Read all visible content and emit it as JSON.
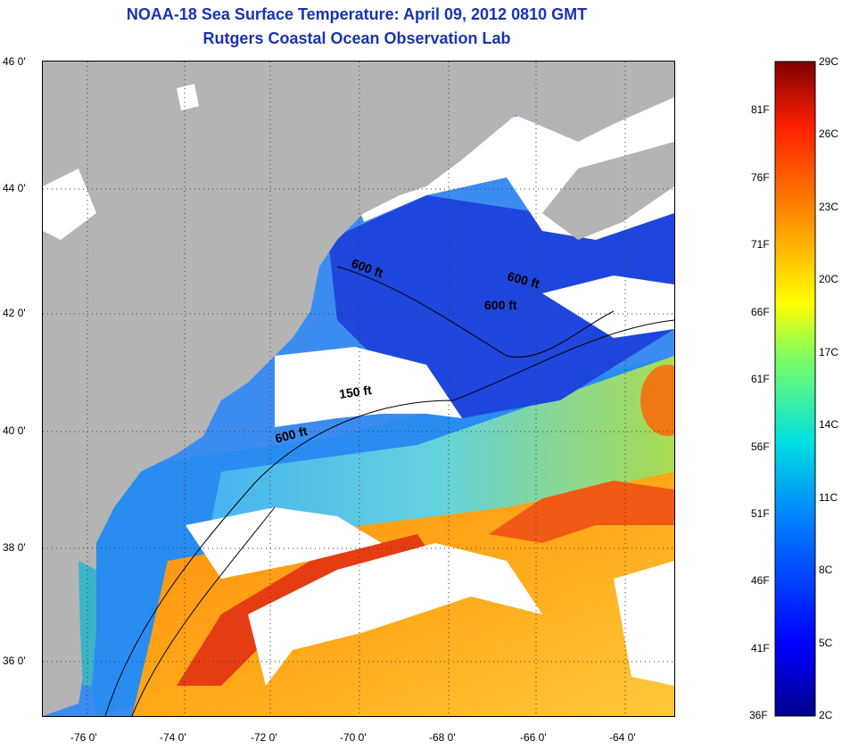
{
  "title": {
    "line1": "NOAA-18 Sea Surface Temperature:  April 09, 2012 0810 GMT",
    "line2": "Rutgers Coastal Ocean Observation Lab"
  },
  "map": {
    "lat_labels": [
      "46 0'",
      "44 0'",
      "42 0'",
      "40 0'",
      "38 0'",
      "36 0'"
    ],
    "lon_labels": [
      "-76 0'",
      "-74 0'",
      "-72 0'",
      "-70 0'",
      "-68 0'",
      "-66 0'",
      "-64 0'"
    ],
    "contour_labels": [
      "600 ft",
      "600 ft",
      "600 ft",
      "150 ft",
      "600 ft"
    ],
    "colors": {
      "land": "#b4b4b4",
      "cloud": "#ffffff",
      "cold": "#1e3cd2",
      "mid": "#1ec8e6",
      "warm": "#ff7814",
      "hot": "#dc1e14"
    }
  },
  "colorbar": {
    "fahrenheit": [
      "81F",
      "76F",
      "71F",
      "66F",
      "61F",
      "56F",
      "51F",
      "46F",
      "41F",
      "36F"
    ],
    "celsius": [
      "29C",
      "26C",
      "23C",
      "20C",
      "17C",
      "14C",
      "11C",
      "8C",
      "5C",
      "2C"
    ],
    "min_c": 2,
    "max_c": 29
  }
}
